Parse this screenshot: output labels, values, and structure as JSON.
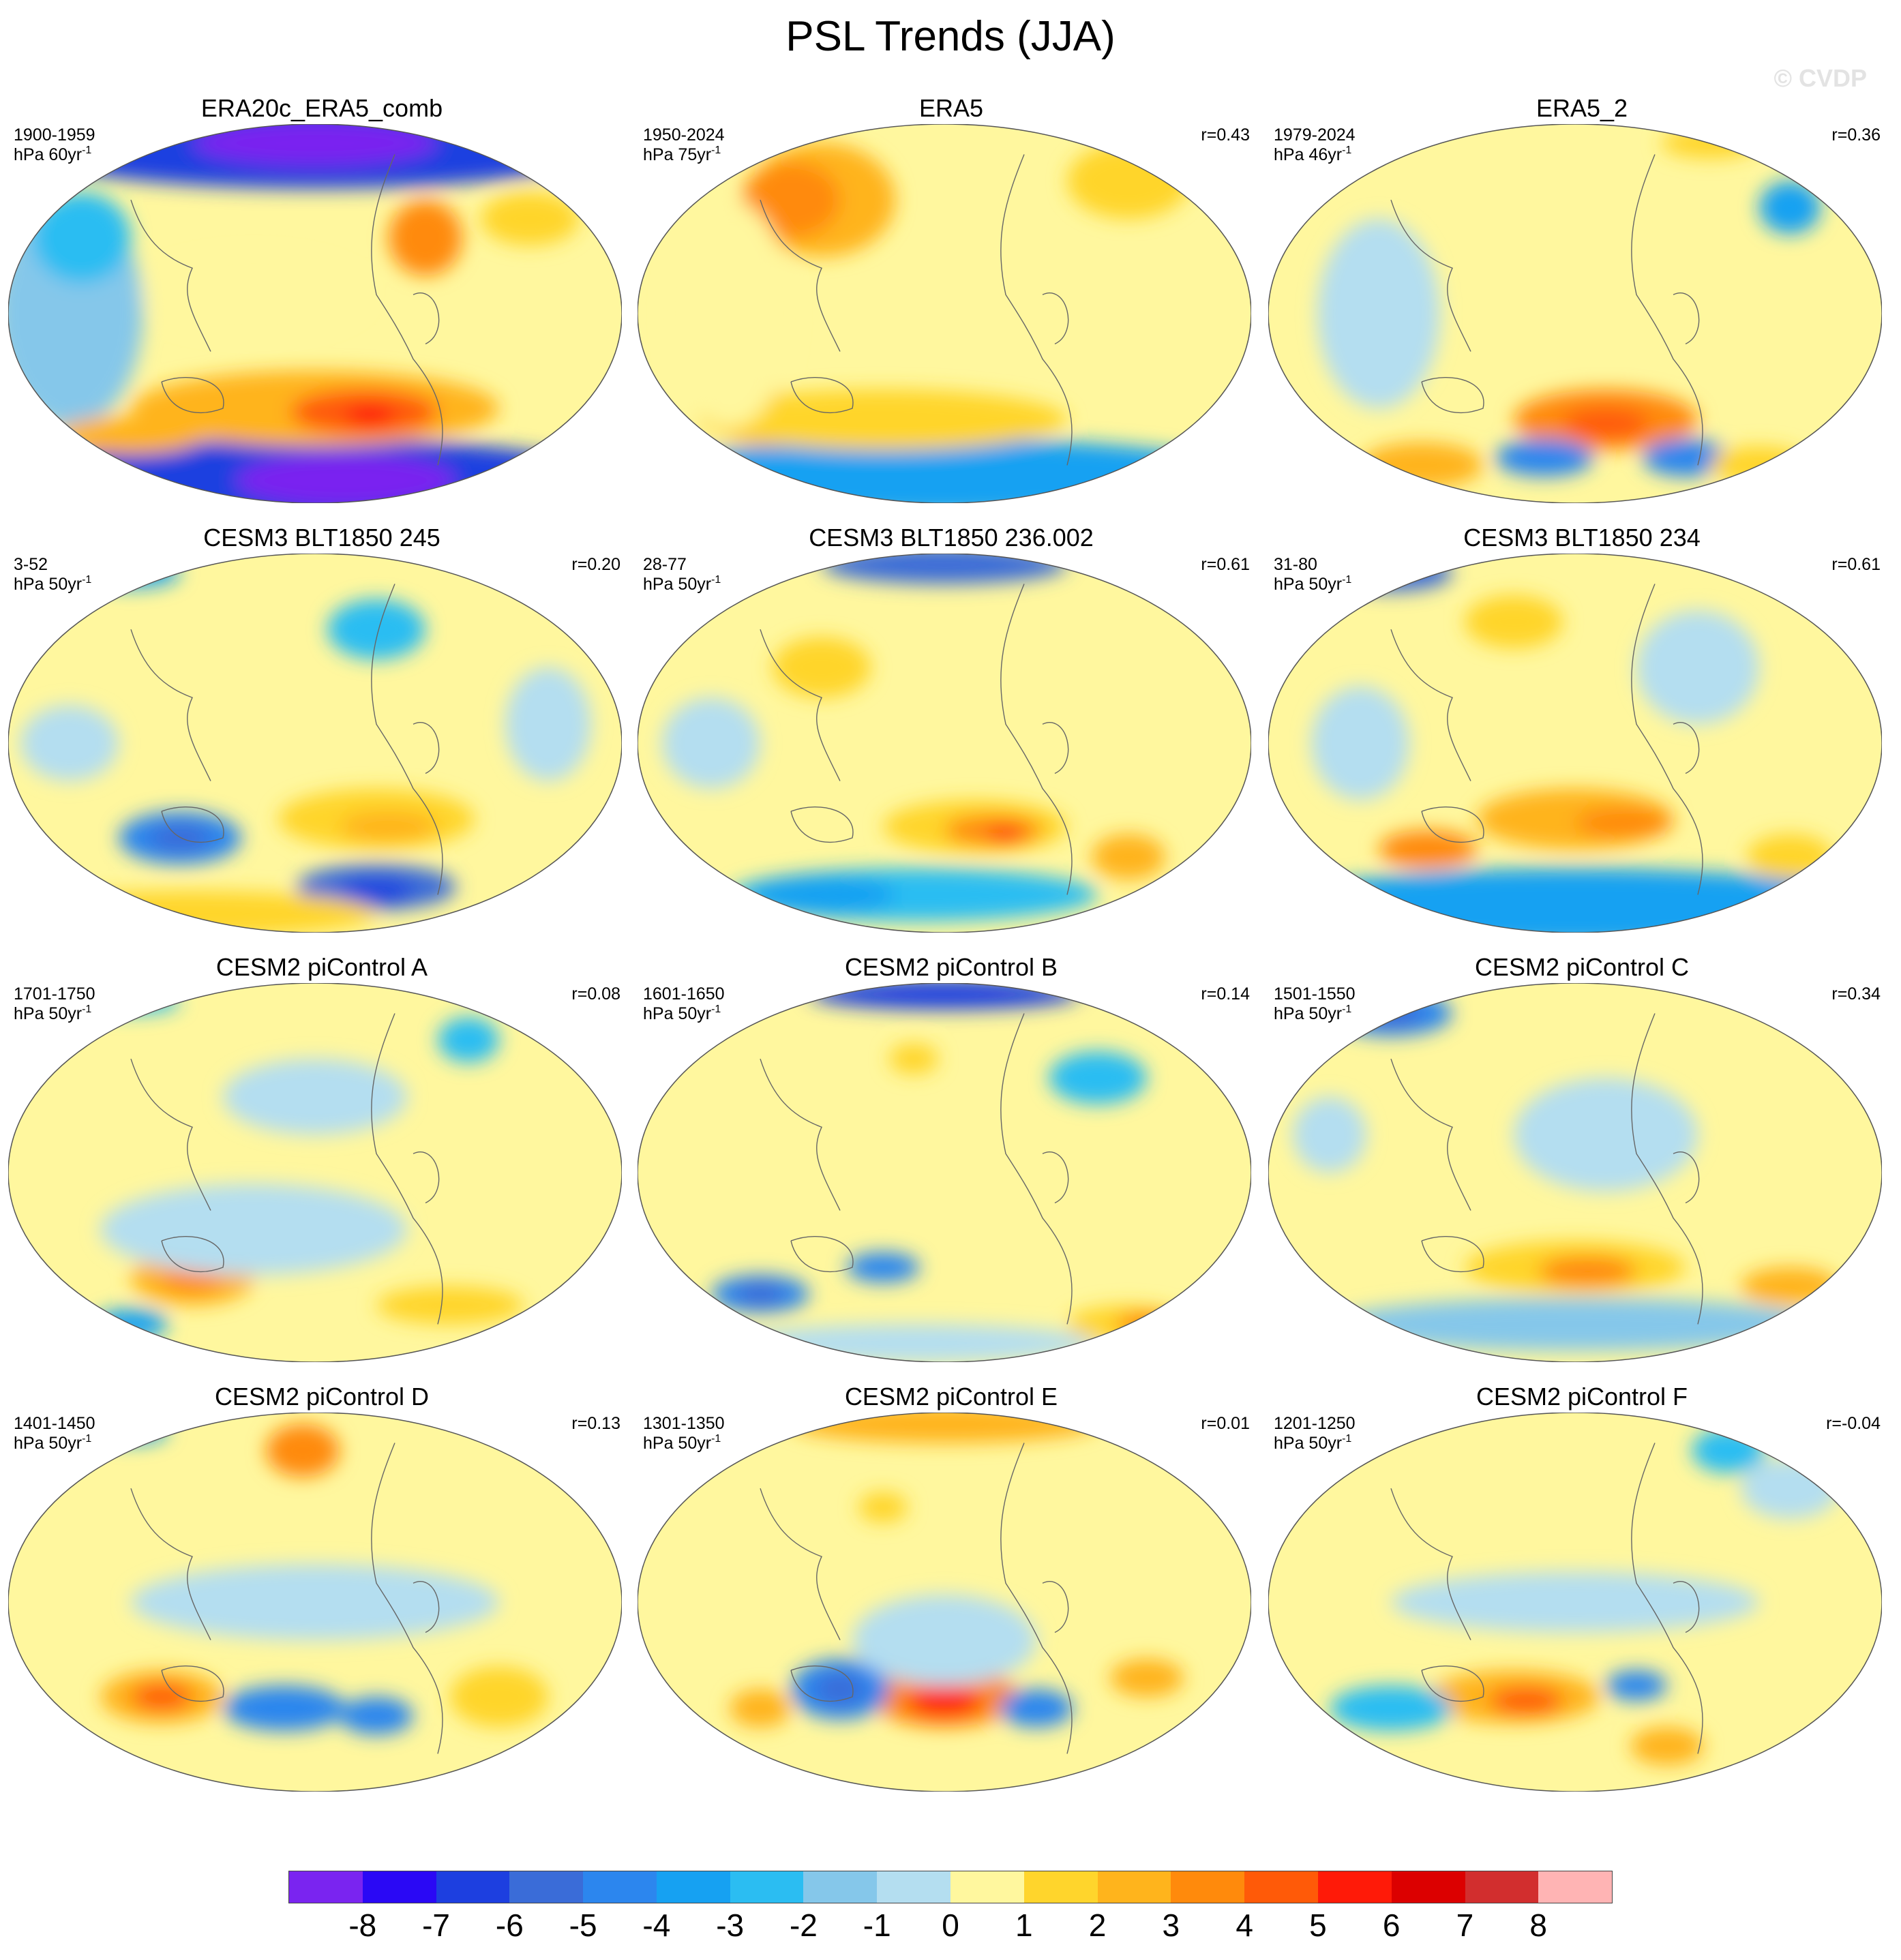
{
  "title": "PSL Trends (JJA)",
  "copyright": "© CVDP",
  "panels": [
    {
      "title": "ERA20c_ERA5_comb",
      "period": "1900-1959",
      "units": "hPa 60yr",
      "units_sup": "-1",
      "corr": ""
    },
    {
      "title": "ERA5",
      "period": "1950-2024",
      "units": "hPa 75yr",
      "units_sup": "-1",
      "corr": "r=0.43"
    },
    {
      "title": "ERA5_2",
      "period": "1979-2024",
      "units": "hPa 46yr",
      "units_sup": "-1",
      "corr": "r=0.36"
    },
    {
      "title": "CESM3 BLT1850 245",
      "period": "3-52",
      "units": "hPa 50yr",
      "units_sup": "-1",
      "corr": "r=0.20"
    },
    {
      "title": "CESM3 BLT1850 236.002",
      "period": "28-77",
      "units": "hPa 50yr",
      "units_sup": "-1",
      "corr": "r=0.61"
    },
    {
      "title": "CESM3 BLT1850 234",
      "period": "31-80",
      "units": "hPa 50yr",
      "units_sup": "-1",
      "corr": "r=0.61"
    },
    {
      "title": "CESM2 piControl A",
      "period": "1701-1750",
      "units": "hPa 50yr",
      "units_sup": "-1",
      "corr": "r=0.08"
    },
    {
      "title": "CESM2 piControl B",
      "period": "1601-1650",
      "units": "hPa 50yr",
      "units_sup": "-1",
      "corr": "r=0.14"
    },
    {
      "title": "CESM2 piControl C",
      "period": "1501-1550",
      "units": "hPa 50yr",
      "units_sup": "-1",
      "corr": "r=0.34"
    },
    {
      "title": "CESM2 piControl D",
      "period": "1401-1450",
      "units": "hPa 50yr",
      "units_sup": "-1",
      "corr": "r=0.13"
    },
    {
      "title": "CESM2 piControl E",
      "period": "1301-1350",
      "units": "hPa 50yr",
      "units_sup": "-1",
      "corr": "r=0.01"
    },
    {
      "title": "CESM2 piControl F",
      "period": "1201-1250",
      "units": "hPa 50yr",
      "units_sup": "-1",
      "corr": "r=-0.04"
    }
  ],
  "colorbar": {
    "colors": [
      "#7a24f0",
      "#2a08f5",
      "#1d3fe0",
      "#3a6cd8",
      "#2c86ee",
      "#16a1f2",
      "#2bbdf2",
      "#85c7ea",
      "#b4def0",
      "#fff79e",
      "#ffd52c",
      "#ffb41c",
      "#ff8a0c",
      "#ff5a08",
      "#ff1a08",
      "#dc0000",
      "#d22e2e",
      "#ffb4b4"
    ],
    "labels": [
      "-8",
      "-7",
      "-6",
      "-5",
      "-4",
      "-3",
      "-2",
      "-1",
      "0",
      "1",
      "2",
      "3",
      "4",
      "5",
      "6",
      "7",
      "8"
    ]
  }
}
